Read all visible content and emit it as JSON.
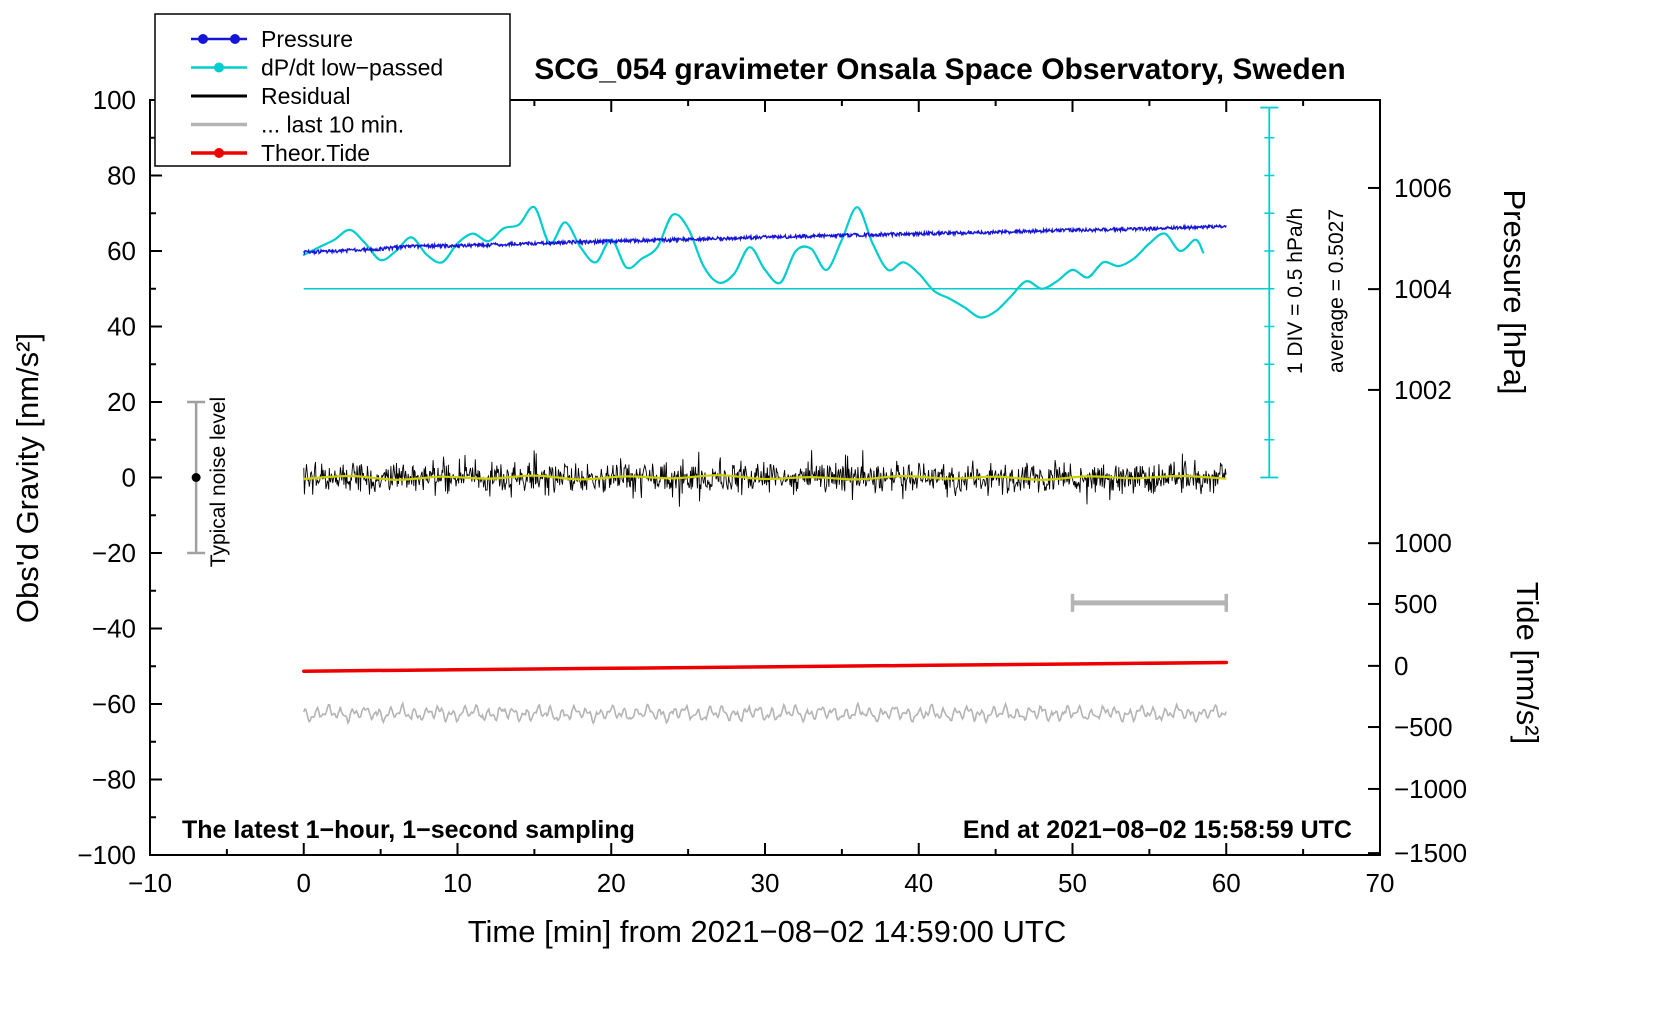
{
  "chart_data": {
    "type": "line",
    "title": "SCG_054 gravimeter Onsala Space Observatory, Sweden",
    "footer": {
      "sampling_note": "The latest 1−hour, 1−second sampling",
      "end_note": "End at 2021−08−02 15:58:59 UTC"
    },
    "annotations": {
      "noise_level": "Typical noise level",
      "div_scale": "1 DIV = 0.5 hPa/h",
      "average": "average = 0.5027"
    },
    "legend": {
      "items": [
        {
          "label": "Pressure",
          "color": "#1515d8",
          "marker": "two-dots"
        },
        {
          "label": "dP/dt low−passed",
          "color": "#00cdcd",
          "marker": "dot"
        },
        {
          "label": "Residual",
          "color": "#000000",
          "marker": "none"
        },
        {
          "label": "... last 10 min.",
          "color": "#b4b4b4",
          "marker": "none"
        },
        {
          "label": "Theor.Tide",
          "color": "#ee0000",
          "marker": "dot"
        }
      ]
    },
    "axes": {
      "x": {
        "label": "Time [min] from 2021−08−02 14:59:00 UTC",
        "min": -10,
        "max": 70,
        "minor_step": 5,
        "ticks": [
          {
            "t": -10,
            "label": "−10"
          },
          {
            "t": 0,
            "label": "0"
          },
          {
            "t": 10,
            "label": "10"
          },
          {
            "t": 20,
            "label": "20"
          },
          {
            "t": 30,
            "label": "30"
          },
          {
            "t": 40,
            "label": "40"
          },
          {
            "t": 50,
            "label": "50"
          },
          {
            "t": 60,
            "label": "60"
          },
          {
            "t": 70,
            "label": "70"
          }
        ]
      },
      "y_left": {
        "label": "Obs'd Gravity [nm/s²]",
        "min": -100,
        "max": 100,
        "minor_step": 10,
        "ticks": [
          {
            "g": 100,
            "label": "100"
          },
          {
            "g": 80,
            "label": "80"
          },
          {
            "g": 60,
            "label": "60"
          },
          {
            "g": 40,
            "label": "40"
          },
          {
            "g": 20,
            "label": "20"
          },
          {
            "g": 0,
            "label": "0"
          },
          {
            "g": -20,
            "label": "−20"
          },
          {
            "g": -40,
            "label": "−40"
          },
          {
            "g": -60,
            "label": "−60"
          },
          {
            "g": -80,
            "label": "−80"
          },
          {
            "g": -100,
            "label": "−100"
          }
        ]
      },
      "y_right_pressure": {
        "label": "Pressure [hPa]",
        "ticks": [
          {
            "g": 76.7,
            "label": "1006"
          },
          {
            "g": 49.9,
            "label": "1004"
          },
          {
            "g": 23.2,
            "label": "1002"
          }
        ]
      },
      "y_right_tide": {
        "label": "Tide [nm/s²]",
        "ticks": [
          {
            "g": -17.4,
            "label": "1000"
          },
          {
            "g": -33.5,
            "label": "500"
          },
          {
            "g": -49.9,
            "label": "0"
          },
          {
            "g": -66.1,
            "label": "−500"
          },
          {
            "g": -82.5,
            "label": "−1000"
          },
          {
            "g": -99.5,
            "label": "−1500"
          }
        ]
      }
    },
    "series": [
      {
        "name": "Pressure",
        "color": "#1515d8",
        "unit": "hPa",
        "map": {
          "ref_value": 1004,
          "ref_g": 50,
          "g_per_unit": 13.37
        },
        "noise_amplitude_g": 0.45,
        "points": [
          [
            0,
            1004.72
          ],
          [
            5,
            1004.79
          ],
          [
            7,
            1004.84
          ],
          [
            10,
            1004.85
          ],
          [
            15,
            1004.9
          ],
          [
            20,
            1004.94
          ],
          [
            25,
            1004.98
          ],
          [
            30,
            1005.02
          ],
          [
            35,
            1005.06
          ],
          [
            40,
            1005.09
          ],
          [
            45,
            1005.12
          ],
          [
            50,
            1005.16
          ],
          [
            55,
            1005.19
          ],
          [
            60,
            1005.24
          ]
        ]
      },
      {
        "name": "dP/dt low−passed",
        "color": "#00cdcd",
        "unit": "hPa/h",
        "map": {
          "ref_value": 0,
          "ref_g": 50,
          "g_per_unit": 20
        },
        "points": [
          [
            0,
            0.45
          ],
          [
            1,
            0.55
          ],
          [
            2,
            0.65
          ],
          [
            3,
            0.78
          ],
          [
            4,
            0.6
          ],
          [
            5,
            0.38
          ],
          [
            6,
            0.5
          ],
          [
            7,
            0.68
          ],
          [
            8,
            0.45
          ],
          [
            9,
            0.35
          ],
          [
            10,
            0.6
          ],
          [
            11,
            0.73
          ],
          [
            12,
            0.63
          ],
          [
            13,
            0.8
          ],
          [
            14,
            0.85
          ],
          [
            15,
            1.08
          ],
          [
            16,
            0.6
          ],
          [
            17,
            0.88
          ],
          [
            18,
            0.55
          ],
          [
            19,
            0.35
          ],
          [
            20,
            0.65
          ],
          [
            21,
            0.28
          ],
          [
            22,
            0.4
          ],
          [
            23,
            0.55
          ],
          [
            24,
            0.98
          ],
          [
            25,
            0.8
          ],
          [
            26,
            0.3
          ],
          [
            27,
            0.08
          ],
          [
            28,
            0.2
          ],
          [
            29,
            0.55
          ],
          [
            30,
            0.25
          ],
          [
            31,
            0.08
          ],
          [
            32,
            0.5
          ],
          [
            33,
            0.53
          ],
          [
            34,
            0.25
          ],
          [
            35,
            0.65
          ],
          [
            36,
            1.08
          ],
          [
            37,
            0.6
          ],
          [
            38,
            0.25
          ],
          [
            39,
            0.35
          ],
          [
            40,
            0.2
          ],
          [
            41,
            -0.03
          ],
          [
            42,
            -0.13
          ],
          [
            43,
            -0.25
          ],
          [
            44,
            -0.38
          ],
          [
            45,
            -0.3
          ],
          [
            46,
            -0.1
          ],
          [
            47,
            0.1
          ],
          [
            48,
            0.0
          ],
          [
            49,
            0.1
          ],
          [
            50,
            0.25
          ],
          [
            51,
            0.15
          ],
          [
            52,
            0.35
          ],
          [
            53,
            0.3
          ],
          [
            54,
            0.4
          ],
          [
            55,
            0.6
          ],
          [
            56,
            0.73
          ],
          [
            57,
            0.5
          ],
          [
            58,
            0.65
          ],
          [
            58.5,
            0.48
          ]
        ]
      },
      {
        "name": "Residual",
        "color": "#000000",
        "unit": "nm/s²",
        "mean": 0,
        "noise_std": 2.0,
        "spike_amplitude": 8,
        "t_range": [
          0,
          60
        ]
      },
      {
        "name": "Residual low−passed",
        "color": "#cfcf00",
        "unit": "nm/s²",
        "points": [
          [
            0,
            -0.4
          ],
          [
            3,
            0.4
          ],
          [
            6,
            -0.6
          ],
          [
            9,
            0.2
          ],
          [
            12,
            -0.3
          ],
          [
            15,
            0.5
          ],
          [
            18,
            -0.5
          ],
          [
            21,
            0.3
          ],
          [
            24,
            -0.2
          ],
          [
            27,
            0.6
          ],
          [
            30,
            -0.4
          ],
          [
            33,
            0.1
          ],
          [
            36,
            -0.5
          ],
          [
            39,
            0.4
          ],
          [
            42,
            -0.3
          ],
          [
            45,
            0.2
          ],
          [
            48,
            -0.6
          ],
          [
            51,
            0.3
          ],
          [
            54,
            -0.2
          ],
          [
            57,
            0.4
          ],
          [
            60,
            -0.3
          ]
        ]
      },
      {
        "name": "... last 10 min.",
        "color": "#b4b4b4",
        "unit": "nm/s²",
        "base": -62.5,
        "amplitude": 2.0,
        "t_range": [
          0,
          60
        ]
      },
      {
        "name": "Theor.Tide",
        "color": "#ee0000",
        "unit": "nm/s² (tide axis)",
        "map": {
          "ref_value": 0,
          "ref_g": -49.9,
          "g_per_unit": 0.0327
        },
        "points": [
          [
            0,
            -43
          ],
          [
            10,
            -31
          ],
          [
            20,
            -20
          ],
          [
            30,
            -8
          ],
          [
            40,
            4
          ],
          [
            50,
            15
          ],
          [
            60,
            27
          ]
        ]
      }
    ],
    "overlays": {
      "reference_line": {
        "g": 50,
        "t0": 0,
        "t1": 62.8,
        "color": "#00cdcd"
      },
      "scale_gauge": {
        "t": 62.8,
        "g_bottom": 0,
        "g_top": 98,
        "div_g": 10,
        "color": "#00cdcd"
      },
      "last10_bar": {
        "t0": 50,
        "t1": 60,
        "g": -33.2,
        "color": "#b4b4b4"
      },
      "noise_bar": {
        "t": -7,
        "g_low": -20,
        "g_high": 20,
        "dot_g": 0,
        "bar_color": "#a0a0a0",
        "dot_color": "#000000"
      }
    }
  }
}
